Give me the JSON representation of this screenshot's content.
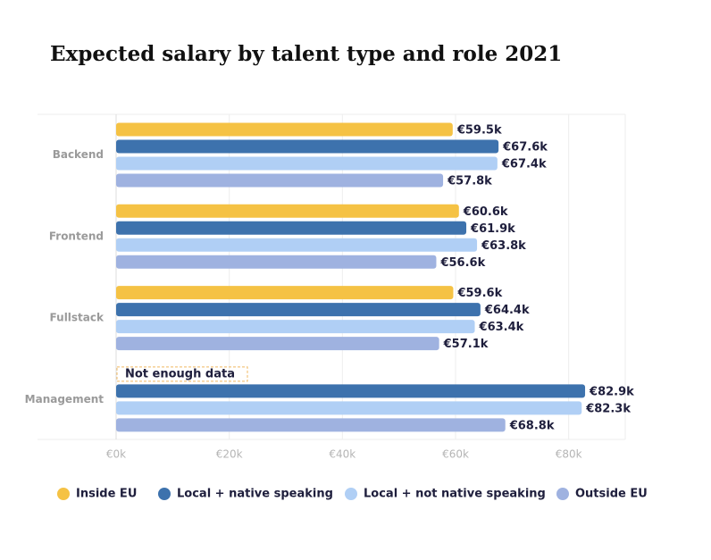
{
  "chart_data": {
    "type": "bar",
    "orientation": "horizontal",
    "title": "Expected salary by talent type and role 2021",
    "categories": [
      "Backend",
      "Frontend",
      "Fullstack",
      "Management"
    ],
    "series": [
      {
        "name": "Inside EU",
        "color": "#f5c244",
        "values": [
          59.5,
          60.6,
          59.6,
          null
        ],
        "value_labels": [
          "€59.5k",
          "€60.6k",
          "€59.6k",
          null
        ]
      },
      {
        "name": "Local + native speaking",
        "color": "#3d72ad",
        "values": [
          67.6,
          61.9,
          64.4,
          82.9
        ],
        "value_labels": [
          "€67.6k",
          "€61.9k",
          "€64.4k",
          "€82.9k"
        ]
      },
      {
        "name": "Local + not native speaking",
        "color": "#b0cff5",
        "values": [
          67.4,
          63.8,
          63.4,
          82.3
        ],
        "value_labels": [
          "€67.4k",
          "€63.8k",
          "€63.4k",
          "€82.3k"
        ]
      },
      {
        "name": "Outside EU",
        "color": "#9fb2e0",
        "values": [
          57.8,
          56.6,
          57.1,
          68.8
        ],
        "value_labels": [
          "€57.8k",
          "€56.6k",
          "€57.1k",
          "€68.8k"
        ]
      }
    ],
    "annotation": "Not enough data",
    "xlim": [
      0,
      90
    ],
    "xticks": [
      {
        "value": 0,
        "label": "€0k"
      },
      {
        "value": 20,
        "label": "€20k"
      },
      {
        "value": 40,
        "label": "€40k"
      },
      {
        "value": 60,
        "label": "€60k"
      },
      {
        "value": 80,
        "label": "€80k"
      }
    ],
    "grid": true
  }
}
